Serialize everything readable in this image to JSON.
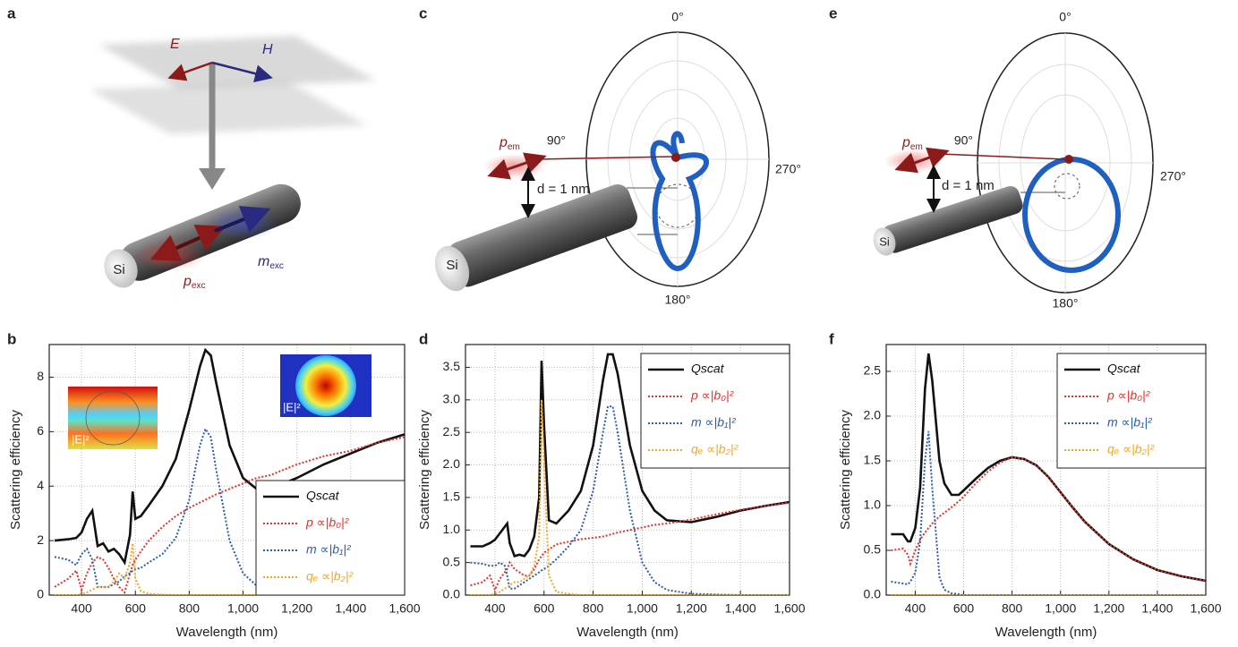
{
  "panel_labels": [
    "a",
    "b",
    "c",
    "d",
    "e",
    "f"
  ],
  "diagram_a": {
    "E": "E",
    "H": "H",
    "rod": "Si",
    "p_exc": {
      "symbol": "p",
      "subscript": "exc"
    },
    "m_exc": {
      "symbol": "m",
      "subscript": "exc"
    }
  },
  "diagram_c": {
    "angles": [
      "0°",
      "90°",
      "270°",
      "180°"
    ],
    "p_em": {
      "symbol": "p",
      "subscript": "em"
    },
    "distance": "d = 1 nm",
    "rod": "Si"
  },
  "diagram_e": {
    "angles": [
      "0°",
      "90°",
      "270°",
      "180°"
    ],
    "p_em": {
      "symbol": "p",
      "subscript": "em"
    },
    "distance": "d = 1 nm",
    "rod": "Si"
  },
  "chart_data": [
    {
      "type": "line",
      "xlabel": "Wavelength (nm)",
      "ylabel": "Scattering efficiency",
      "legend": "lower right",
      "grid": true,
      "annotations": [
        "|E|²",
        "|E|²"
      ],
      "xlim": [
        280,
        1600
      ],
      "ylim": [
        0,
        9.2
      ],
      "xticks": [
        400,
        600,
        800,
        {
          "value": 1000,
          "label": "1,000"
        },
        {
          "value": 1200,
          "label": "1,200"
        },
        {
          "value": 1400,
          "label": "1,400"
        },
        {
          "value": 1600,
          "label": "1,600"
        }
      ],
      "yticks": [
        0,
        2,
        4,
        6,
        8
      ],
      "x": [
        300,
        350,
        380,
        400,
        420,
        440,
        460,
        480,
        500,
        520,
        540,
        560,
        580,
        590,
        600,
        620,
        650,
        700,
        750,
        800,
        840,
        860,
        880,
        900,
        950,
        1000,
        1050,
        1100,
        1200,
        1300,
        1400,
        1500,
        1600
      ],
      "series": [
        {
          "name": "Qscat",
          "color": "#111111",
          "linestyle": "solid",
          "values": [
            2.0,
            2.05,
            2.1,
            2.3,
            2.8,
            3.1,
            1.8,
            1.9,
            1.6,
            1.7,
            1.5,
            1.2,
            2.2,
            3.8,
            2.8,
            2.9,
            3.3,
            4.0,
            5.0,
            6.8,
            8.4,
            9.0,
            8.8,
            7.8,
            5.5,
            4.3,
            3.9,
            3.9,
            4.3,
            4.8,
            5.2,
            5.6,
            5.9
          ]
        },
        {
          "name": "p ∝|b₀|²",
          "color": "#e8302a",
          "linestyle": "dotted",
          "values": [
            0.3,
            0.6,
            0.9,
            0.2,
            0.8,
            1.2,
            1.4,
            1.3,
            1.0,
            0.6,
            0.3,
            0.1,
            0.8,
            1.1,
            1.3,
            1.6,
            2.0,
            2.5,
            2.9,
            3.2,
            3.4,
            3.5,
            3.6,
            3.7,
            3.9,
            4.1,
            4.3,
            4.4,
            4.8,
            5.1,
            5.3,
            5.6,
            5.8
          ]
        },
        {
          "name": "m ∝|b₁|²",
          "color": "#2a5db0",
          "linestyle": "dotted",
          "values": [
            1.4,
            1.3,
            1.1,
            1.5,
            1.7,
            1.3,
            0.3,
            0.3,
            0.3,
            0.4,
            0.5,
            0.7,
            0.8,
            0.9,
            0.95,
            1.0,
            1.2,
            1.5,
            2.1,
            3.5,
            5.5,
            6.1,
            5.8,
            4.6,
            2.0,
            0.8,
            0.35,
            0.15,
            0.05,
            0.02,
            0.01,
            0.01,
            0
          ]
        },
        {
          "name": "qₑ ∝|b₂|²",
          "color": "#f5a623",
          "linestyle": "dotted",
          "values": [
            0,
            0,
            0,
            0.05,
            0.1,
            0.2,
            0.3,
            0.3,
            0.3,
            0.5,
            0.8,
            0.6,
            1.2,
            1.9,
            0.6,
            0.15,
            0.05,
            0.02,
            0,
            0,
            0,
            0,
            0,
            0,
            0,
            0,
            0,
            0,
            0,
            0,
            0,
            0,
            0
          ]
        }
      ]
    },
    {
      "type": "line",
      "xlabel": "Wavelength (nm)",
      "ylabel": "Scattering efficiency",
      "legend": "upper right",
      "grid": true,
      "xlim": [
        280,
        1600
      ],
      "ylim": [
        0,
        3.85
      ],
      "xticks": [
        400,
        600,
        800,
        {
          "value": 1000,
          "label": "1,000"
        },
        {
          "value": 1200,
          "label": "1,200"
        },
        {
          "value": 1400,
          "label": "1,400"
        },
        {
          "value": 1600,
          "label": "1,600"
        }
      ],
      "yticks": [
        {
          "value": 0,
          "label": "0.0"
        },
        0.5,
        {
          "value": 1,
          "label": "1.0"
        },
        1.5,
        {
          "value": 2,
          "label": "2.0"
        },
        2.5,
        {
          "value": 3,
          "label": "3.0"
        },
        3.5
      ],
      "x": [
        300,
        350,
        380,
        400,
        420,
        440,
        450,
        460,
        480,
        500,
        520,
        540,
        560,
        580,
        590,
        600,
        620,
        650,
        700,
        750,
        800,
        840,
        860,
        880,
        900,
        950,
        1000,
        1050,
        1100,
        1200,
        1300,
        1400,
        1500,
        1600
      ],
      "series": [
        {
          "name": "Qscat",
          "color": "#111111",
          "linestyle": "solid",
          "values": [
            0.75,
            0.75,
            0.8,
            0.85,
            0.95,
            1.05,
            1.1,
            0.8,
            0.6,
            0.62,
            0.6,
            0.7,
            0.9,
            1.5,
            3.6,
            2.6,
            1.15,
            1.1,
            1.3,
            1.6,
            2.3,
            3.3,
            3.7,
            3.7,
            3.4,
            2.3,
            1.6,
            1.3,
            1.15,
            1.12,
            1.2,
            1.3,
            1.37,
            1.43
          ]
        },
        {
          "name": "p ∝|b₀|²",
          "color": "#e8302a",
          "linestyle": "dotted",
          "values": [
            0.15,
            0.2,
            0.3,
            0.08,
            0.25,
            0.35,
            0.4,
            0.5,
            0.4,
            0.35,
            0.3,
            0.3,
            0.4,
            0.55,
            0.6,
            0.65,
            0.7,
            0.78,
            0.82,
            0.86,
            0.88,
            0.9,
            0.92,
            0.94,
            0.96,
            1.0,
            1.04,
            1.08,
            1.1,
            1.16,
            1.24,
            1.31,
            1.37,
            1.42
          ]
        },
        {
          "name": "m ∝|b₁|²",
          "color": "#2a5db0",
          "linestyle": "dotted",
          "values": [
            0.5,
            0.48,
            0.45,
            0.45,
            0.5,
            0.45,
            0.3,
            0.1,
            0.1,
            0.15,
            0.2,
            0.25,
            0.3,
            0.35,
            0.38,
            0.4,
            0.45,
            0.55,
            0.75,
            1.0,
            1.6,
            2.5,
            2.9,
            2.9,
            2.5,
            1.3,
            0.5,
            0.2,
            0.08,
            0.02,
            0.01,
            0,
            0,
            0
          ]
        },
        {
          "name": "qₑ ∝|b₂|²",
          "color": "#f5a623",
          "linestyle": "dotted",
          "values": [
            0,
            0,
            0,
            0.02,
            0.05,
            0.1,
            0.12,
            0.15,
            0.2,
            0.2,
            0.25,
            0.3,
            0.45,
            0.9,
            3.0,
            2.0,
            0.3,
            0.05,
            0.02,
            0,
            0,
            0,
            0,
            0,
            0,
            0,
            0,
            0,
            0,
            0,
            0,
            0,
            0,
            0
          ]
        }
      ]
    },
    {
      "type": "line",
      "xlabel": "Wavelength (nm)",
      "ylabel": "Scattering efficiency",
      "legend": "upper right",
      "grid": true,
      "xlim": [
        280,
        1600
      ],
      "ylim": [
        0,
        2.8
      ],
      "xticks": [
        400,
        600,
        800,
        {
          "value": 1000,
          "label": "1,000"
        },
        {
          "value": 1200,
          "label": "1,200"
        },
        {
          "value": 1400,
          "label": "1,400"
        },
        {
          "value": 1600,
          "label": "1,600"
        }
      ],
      "yticks": [
        {
          "value": 0,
          "label": "0.0"
        },
        0.5,
        {
          "value": 1,
          "label": "1.0"
        },
        1.5,
        {
          "value": 2,
          "label": "2.0"
        },
        2.5
      ],
      "x": [
        300,
        350,
        370,
        380,
        400,
        420,
        440,
        455,
        470,
        500,
        520,
        550,
        580,
        600,
        650,
        700,
        750,
        800,
        850,
        900,
        950,
        1000,
        1050,
        1100,
        1200,
        1300,
        1400,
        1500,
        1600
      ],
      "series": [
        {
          "name": "Qscat",
          "color": "#111111",
          "linestyle": "solid",
          "values": [
            0.68,
            0.68,
            0.6,
            0.6,
            0.75,
            1.2,
            2.3,
            2.7,
            2.4,
            1.5,
            1.25,
            1.12,
            1.12,
            1.17,
            1.3,
            1.42,
            1.5,
            1.54,
            1.52,
            1.45,
            1.32,
            1.15,
            0.98,
            0.82,
            0.57,
            0.4,
            0.28,
            0.21,
            0.16
          ]
        },
        {
          "name": "p ∝|b₀|²",
          "color": "#e8302a",
          "linestyle": "dotted",
          "values": [
            0.5,
            0.52,
            0.45,
            0.35,
            0.5,
            0.62,
            0.7,
            0.75,
            0.8,
            0.88,
            0.92,
            0.98,
            1.05,
            1.1,
            1.25,
            1.38,
            1.48,
            1.54,
            1.52,
            1.45,
            1.32,
            1.15,
            0.98,
            0.82,
            0.57,
            0.4,
            0.28,
            0.21,
            0.16
          ]
        },
        {
          "name": "m ∝|b₁|²",
          "color": "#2a5db0",
          "linestyle": "dotted",
          "values": [
            0.15,
            0.13,
            0.12,
            0.15,
            0.25,
            0.6,
            1.5,
            1.83,
            1.2,
            0.2,
            0.06,
            0.02,
            0.01,
            0,
            0,
            0,
            0,
            0,
            0,
            0,
            0,
            0,
            0,
            0,
            0,
            0,
            0,
            0,
            0
          ]
        },
        {
          "name": "qₑ ∝|b₂|²",
          "color": "#f5a623",
          "linestyle": "dotted",
          "values": [
            0,
            0,
            0,
            0,
            0,
            0,
            0,
            0,
            0,
            0,
            0,
            0,
            0,
            0,
            0,
            0,
            0,
            0,
            0,
            0,
            0,
            0,
            0,
            0,
            0,
            0,
            0,
            0,
            0
          ]
        }
      ]
    }
  ]
}
